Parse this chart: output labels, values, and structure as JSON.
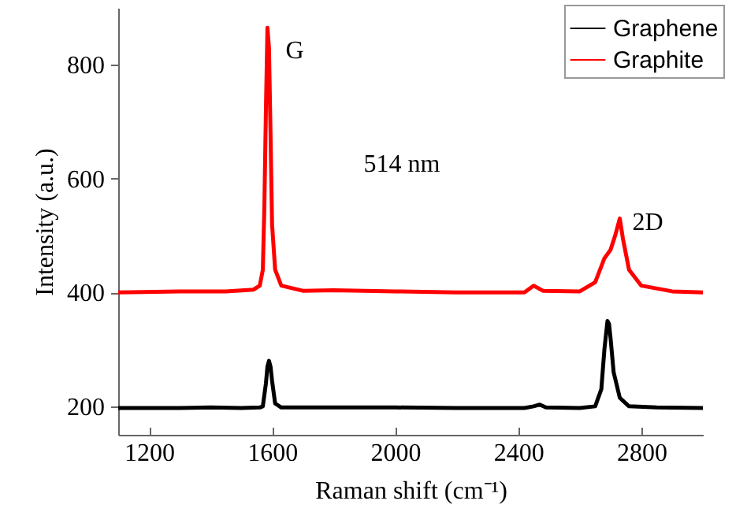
{
  "chart_data": {
    "type": "line",
    "xlabel": "Raman shift (cm⁻¹)",
    "ylabel": "Intensity (a.u.)",
    "xlim": [
      1100,
      3000
    ],
    "xticks": [
      1200,
      1600,
      2000,
      2400,
      2800
    ],
    "ylim": [
      150,
      900
    ],
    "yticks": [
      200,
      400,
      600,
      800
    ],
    "grid": false,
    "legend": "top right",
    "marker": "none",
    "line_style": "solid",
    "annotations": [
      "G",
      "514 nm",
      "2D"
    ],
    "series": [
      {
        "name": "Graphene",
        "color": "#000000",
        "x": [
          1100,
          1300,
          1400,
          1500,
          1560,
          1570,
          1580,
          1585,
          1590,
          1595,
          1600,
          1610,
          1630,
          1800,
          2000,
          2200,
          2420,
          2450,
          2470,
          2490,
          2600,
          2650,
          2670,
          2680,
          2690,
          2695,
          2700,
          2710,
          2730,
          2760,
          2850,
          3000
        ],
        "values": [
          197,
          197,
          198,
          197,
          198,
          200,
          240,
          270,
          280,
          270,
          245,
          205,
          198,
          198,
          198,
          197,
          197,
          200,
          203,
          198,
          197,
          200,
          230,
          300,
          350,
          345,
          320,
          260,
          215,
          200,
          198,
          197
        ]
      },
      {
        "name": "Graphite",
        "color": "#ff0000",
        "x": [
          1100,
          1300,
          1450,
          1540,
          1560,
          1570,
          1575,
          1580,
          1585,
          1590,
          1595,
          1600,
          1610,
          1630,
          1700,
          1800,
          2000,
          2200,
          2420,
          2450,
          2480,
          2600,
          2650,
          2680,
          2700,
          2715,
          2725,
          2730,
          2740,
          2760,
          2800,
          2900,
          3000
        ],
        "values": [
          400,
          402,
          402,
          405,
          412,
          440,
          550,
          720,
          865,
          830,
          680,
          520,
          440,
          412,
          403,
          404,
          402,
          400,
          400,
          412,
          403,
          402,
          418,
          460,
          475,
          500,
          520,
          530,
          495,
          440,
          412,
          402,
          400
        ]
      }
    ]
  }
}
